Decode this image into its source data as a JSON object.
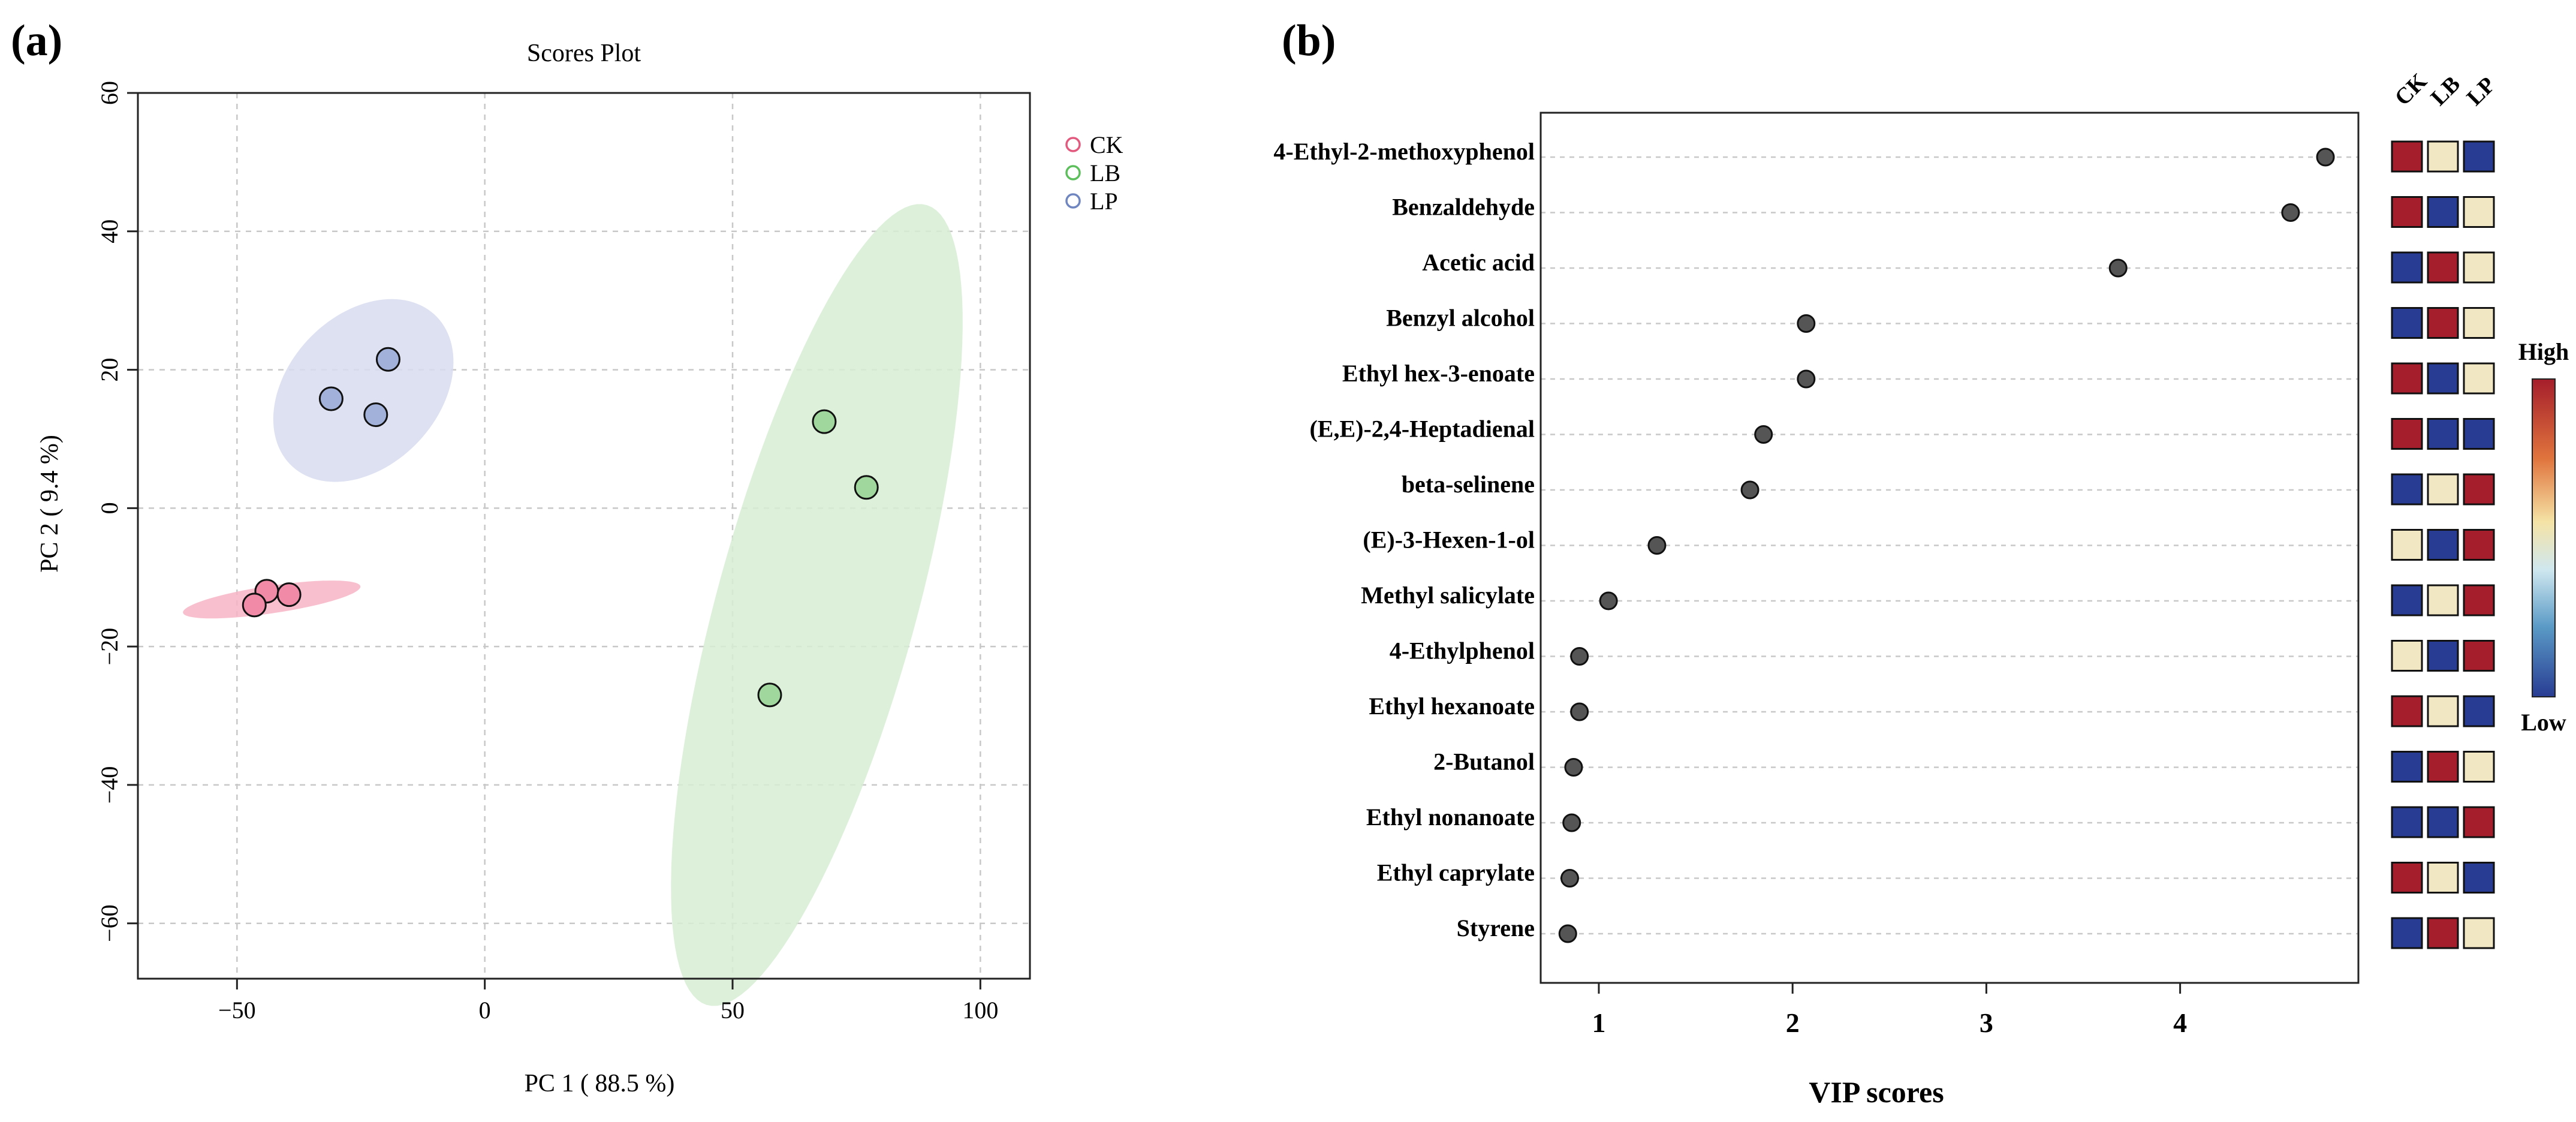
{
  "panel_labels": {
    "a": "(a)",
    "b": "(b)"
  },
  "colors": {
    "ck": "#e35a7f",
    "ck_fill": "#f08aa6",
    "ck_ellipse": "#f7b5c6",
    "lb": "#5cbf5c",
    "lb_fill": "#9fd79c",
    "lb_ellipse": "#d6edd4",
    "lp": "#6f86c0",
    "lp_fill": "#a2b1d9",
    "lp_ellipse": "#d7dcee",
    "grid": "#c8c8c8",
    "vip_dot": "#555555",
    "heat_high": "#a51e2b",
    "heat_mid": "#f1e7c2",
    "heat_low": "#283c93"
  },
  "chart_data": [
    {
      "type": "scatter",
      "title": "Scores Plot",
      "xlabel": "PC 1 ( 88.5 %)",
      "ylabel": "PC 2 ( 9.4 %)",
      "xlim": [
        -70,
        110
      ],
      "ylim": [
        -68,
        60
      ],
      "xticks": [
        -50,
        0,
        50,
        100
      ],
      "yticks": [
        -60,
        -40,
        -20,
        0,
        20,
        40,
        60
      ],
      "xtick_labels": [
        "−50",
        "0",
        "50",
        "100"
      ],
      "ytick_labels": [
        "−60",
        "−40",
        "−20",
        "0",
        "20",
        "40",
        "60"
      ],
      "legend_position": "right",
      "series": [
        {
          "name": "CK",
          "key": "ck",
          "points": [
            [
              -44,
              -12
            ],
            [
              -39.5,
              -12.5
            ],
            [
              -46.5,
              -14
            ]
          ],
          "ellipse": {
            "cx": -43,
            "cy": -13.2,
            "rx": 18,
            "ry": 2,
            "angle": 6
          }
        },
        {
          "name": "LB",
          "key": "lb",
          "points": [
            [
              68.5,
              12.5
            ],
            [
              77,
              3
            ],
            [
              57.5,
              -27
            ]
          ],
          "ellipse": {
            "cx": 67,
            "cy": -14,
            "rx": 62,
            "ry": 19.5,
            "angle": 68
          }
        },
        {
          "name": "LP",
          "key": "lp",
          "points": [
            [
              -19.5,
              21.5
            ],
            [
              -31,
              15.8
            ],
            [
              -22,
              13.5
            ]
          ],
          "ellipse": {
            "cx": -24.5,
            "cy": 17,
            "rx": 19,
            "ry": 12,
            "angle": 22
          }
        }
      ]
    },
    {
      "type": "scatter",
      "xlabel": "VIP scores",
      "xlim": [
        0.7,
        4.92
      ],
      "xticks": [
        1,
        2,
        3,
        4
      ],
      "xtick_labels": [
        "1",
        "2",
        "3",
        "4"
      ],
      "compounds": [
        "4-Ethyl-2-methoxyphenol",
        "Benzaldehyde",
        "Acetic acid",
        "Benzyl alcohol",
        "Ethyl hex-3-enoate",
        "(E,E)-2,4-Heptadienal",
        "beta-selinene",
        "(E)-3-Hexen-1-ol",
        "Methyl salicylate",
        "4-Ethylphenol",
        "Ethyl hexanoate",
        "2-Butanol",
        "Ethyl nonanoate",
        "Ethyl caprylate",
        "Styrene"
      ],
      "values": [
        4.75,
        4.57,
        3.68,
        2.07,
        2.07,
        1.85,
        1.78,
        1.3,
        1.05,
        0.9,
        0.9,
        0.87,
        0.86,
        0.85,
        0.84
      ],
      "heatmap": {
        "columns": [
          "CK",
          "LB",
          "LP"
        ],
        "levels": [
          [
            "high",
            "mid",
            "low"
          ],
          [
            "high",
            "low",
            "mid"
          ],
          [
            "low",
            "high",
            "mid"
          ],
          [
            "low",
            "high",
            "mid"
          ],
          [
            "high",
            "low",
            "mid"
          ],
          [
            "high",
            "low",
            "low"
          ],
          [
            "low",
            "mid",
            "high"
          ],
          [
            "mid",
            "low",
            "high"
          ],
          [
            "low",
            "mid",
            "high"
          ],
          [
            "mid",
            "low",
            "high"
          ],
          [
            "high",
            "mid",
            "low"
          ],
          [
            "low",
            "high",
            "mid"
          ],
          [
            "low",
            "low",
            "high"
          ],
          [
            "high",
            "mid",
            "low"
          ],
          [
            "low",
            "high",
            "mid"
          ]
        ],
        "colorbar": {
          "high_label": "High",
          "low_label": "Low"
        }
      }
    }
  ]
}
